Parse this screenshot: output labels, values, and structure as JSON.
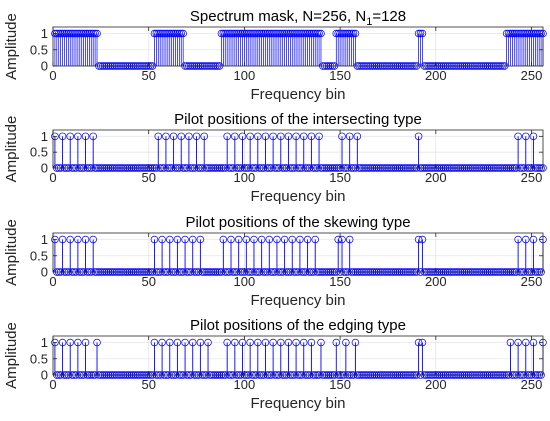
{
  "chart_data": [
    {
      "type": "stem",
      "title": "Spectrum mask, N=256, N",
      "title_sub": "1",
      "title_tail": "=128",
      "xlabel": "Frequency bin",
      "ylabel": "Amplitude",
      "xlim": [
        0,
        256
      ],
      "ylim": [
        0,
        1.2
      ],
      "xticks": [
        0,
        50,
        100,
        150,
        200,
        250
      ],
      "yticks": [
        0,
        0.5,
        1
      ],
      "ytick_labels": [
        "0",
        "0.5",
        "1"
      ],
      "grid": true,
      "active_ranges": [
        [
          1,
          23
        ],
        [
          53,
          68
        ],
        [
          88,
          140
        ],
        [
          148,
          158
        ],
        [
          191,
          193
        ],
        [
          237,
          256
        ]
      ]
    },
    {
      "type": "stem",
      "title": "Pilot positions of the intersecting type",
      "xlabel": "Frequency bin",
      "ylabel": "Amplitude",
      "xlim": [
        0,
        256
      ],
      "ylim": [
        0,
        1.2
      ],
      "xticks": [
        0,
        50,
        100,
        150,
        200,
        250
      ],
      "yticks": [
        0,
        0.5,
        1
      ],
      "ytick_labels": [
        "0",
        "0.5",
        "1"
      ],
      "grid": true,
      "mask_ranges": [
        [
          1,
          23
        ],
        [
          53,
          68
        ],
        [
          88,
          140
        ],
        [
          148,
          158
        ],
        [
          191,
          193
        ],
        [
          237,
          256
        ]
      ],
      "pilots": [
        1,
        5,
        9,
        13,
        17,
        21,
        55,
        59,
        63,
        67,
        71,
        75,
        79,
        91,
        95,
        99,
        103,
        107,
        111,
        115,
        119,
        123,
        127,
        131,
        135,
        139,
        151,
        155,
        159,
        191,
        243,
        247,
        251
      ]
    },
    {
      "type": "stem",
      "title": "Pilot positions of the skewing type",
      "xlabel": "Frequency bin",
      "ylabel": "Amplitude",
      "xlim": [
        0,
        256
      ],
      "ylim": [
        0,
        1.2
      ],
      "xticks": [
        0,
        50,
        100,
        150,
        200,
        250
      ],
      "yticks": [
        0,
        0.5,
        1
      ],
      "ytick_labels": [
        "0",
        "0.5",
        "1"
      ],
      "grid": true,
      "mask_ranges": [
        [
          1,
          23
        ],
        [
          53,
          68
        ],
        [
          88,
          140
        ],
        [
          148,
          158
        ],
        [
          191,
          193
        ],
        [
          237,
          256
        ]
      ],
      "pilots": [
        1,
        5,
        9,
        13,
        17,
        21,
        53,
        57,
        61,
        65,
        69,
        73,
        77,
        89,
        93,
        97,
        101,
        105,
        109,
        113,
        117,
        121,
        125,
        129,
        133,
        137,
        149,
        151,
        155,
        191,
        193,
        243,
        247,
        251,
        256
      ]
    },
    {
      "type": "stem",
      "title": "Pilot positions of the edging type",
      "xlabel": "Frequency bin",
      "ylabel": "Amplitude",
      "xlim": [
        0,
        256
      ],
      "ylim": [
        0,
        1.2
      ],
      "xticks": [
        0,
        50,
        100,
        150,
        200,
        250
      ],
      "yticks": [
        0,
        0.5,
        1
      ],
      "ytick_labels": [
        "0",
        "0.5",
        "1"
      ],
      "grid": true,
      "mask_ranges": [
        [
          1,
          23
        ],
        [
          53,
          68
        ],
        [
          88,
          140
        ],
        [
          148,
          158
        ],
        [
          191,
          193
        ],
        [
          237,
          256
        ]
      ],
      "pilots": [
        1,
        5,
        9,
        13,
        17,
        23,
        53,
        57,
        61,
        65,
        69,
        73,
        77,
        81,
        91,
        95,
        99,
        103,
        107,
        111,
        115,
        119,
        123,
        127,
        131,
        135,
        140,
        148,
        153,
        158,
        191,
        193,
        239,
        243,
        247,
        251,
        256
      ]
    }
  ],
  "colors": {
    "stem": "#0000ff",
    "axes": "#262626",
    "grid": "#e6e6e6",
    "text": "#262626"
  }
}
